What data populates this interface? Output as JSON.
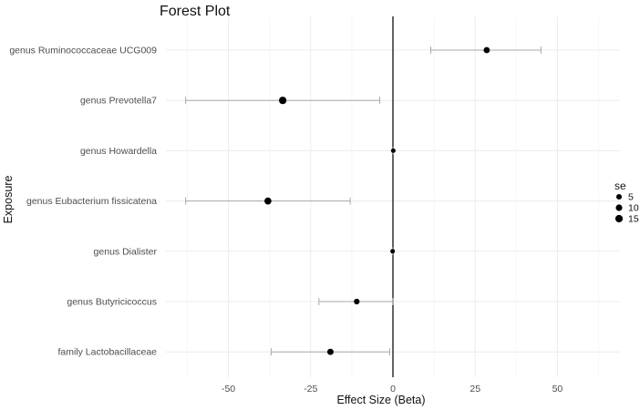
{
  "chart_data": {
    "type": "forest",
    "title": "Forest Plot",
    "xlabel": "Effect Size (Beta)",
    "ylabel": "Exposure",
    "xlim": [
      -69,
      69
    ],
    "xticks": [
      -50,
      -25,
      0,
      25,
      50
    ],
    "xtick_labels": [
      "-50",
      "-25",
      "0",
      "25",
      "50"
    ],
    "reference_line": 0,
    "grid": true,
    "legend": {
      "title": "se",
      "position": "right",
      "items": [
        {
          "label": "5",
          "value": 5
        },
        {
          "label": "10",
          "value": 10
        },
        {
          "label": "15",
          "value": 15
        }
      ]
    },
    "rows": [
      {
        "label": "genus Ruminococcaceae UCG009",
        "beta": 28.5,
        "lower": 11.5,
        "upper": 45,
        "se": 8.5
      },
      {
        "label": "genus Prevotella7",
        "beta": -33.5,
        "lower": -63,
        "upper": -4,
        "se": 15
      },
      {
        "label": "genus Howardella",
        "beta": 0.1,
        "lower": 0.1,
        "upper": 0.1,
        "se": 0.1
      },
      {
        "label": "genus Eubacterium fissicatena",
        "beta": -38,
        "lower": -63,
        "upper": -13,
        "se": 12.8
      },
      {
        "label": "genus Dialister",
        "beta": -0.1,
        "lower": -0.1,
        "upper": -0.1,
        "se": 0.1
      },
      {
        "label": "genus Butyricicoccus",
        "beta": -11,
        "lower": -22.5,
        "upper": 0,
        "se": 5.8
      },
      {
        "label": "family Lactobacillaceae",
        "beta": -19,
        "lower": -37,
        "upper": -1,
        "se": 9.2
      }
    ]
  }
}
